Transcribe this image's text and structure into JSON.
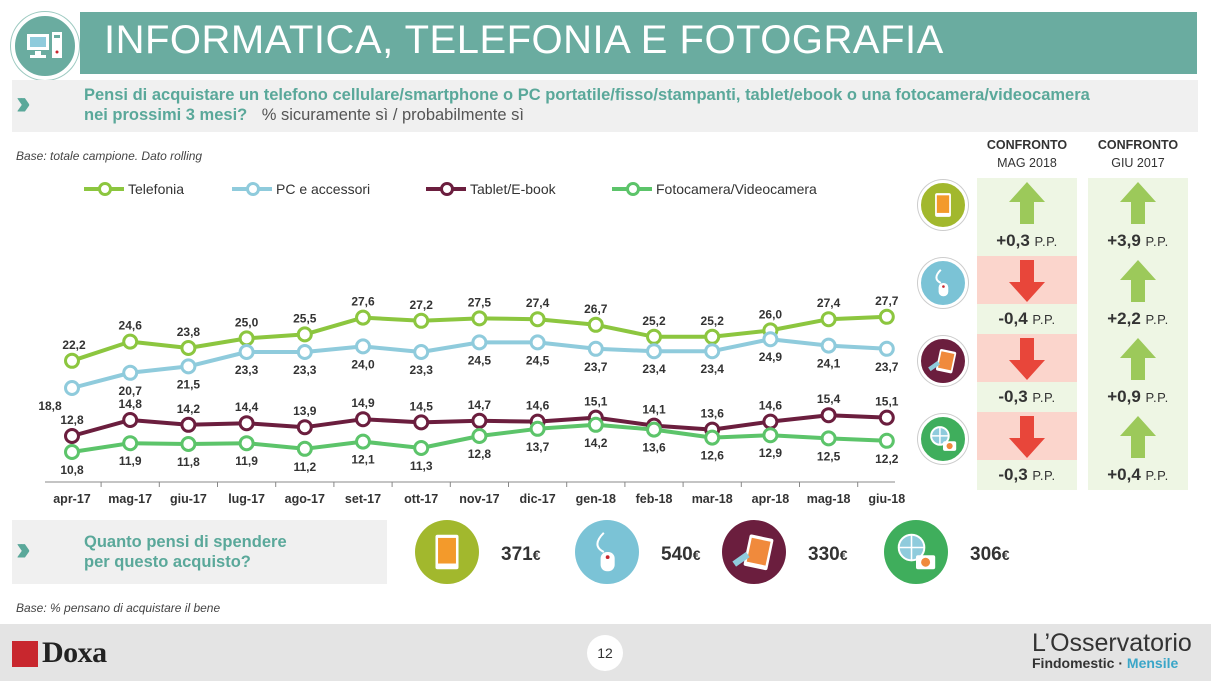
{
  "header": {
    "title": "INFORMATICA, TELEFONIA E FOTOGRAFIA",
    "question_line1": "Pensi di acquistare un telefono cellulare/smartphone o PC portatile/fisso/stampanti, tablet/ebook o una fotocamera/videocamera",
    "question_line2": "nei prossimi 3 mesi?",
    "question_suffix": "% sicuramente sì / probabilmente sì"
  },
  "base_note": "Base: totale campione. Dato rolling",
  "chart_data": {
    "type": "line",
    "categories": [
      "apr-17",
      "mag-17",
      "giu-17",
      "lug-17",
      "ago-17",
      "set-17",
      "ott-17",
      "nov-17",
      "dic-17",
      "gen-18",
      "feb-18",
      "mar-18",
      "apr-18",
      "mag-18",
      "giu-18"
    ],
    "series": [
      {
        "name": "Telefonia",
        "color": "#8cc63f",
        "values": [
          22.2,
          24.6,
          23.8,
          25.0,
          25.5,
          27.6,
          27.2,
          27.5,
          27.4,
          26.7,
          25.2,
          25.2,
          26.0,
          27.4,
          27.7
        ],
        "labels": [
          "22,2",
          "24,6",
          "23,8",
          "25,0",
          "25,5",
          "27,6",
          "27,2",
          "27,5",
          "27,4",
          "26,7",
          "25,2",
          "25,2",
          "26,0",
          "27,4",
          "27,7"
        ]
      },
      {
        "name": "PC e accessori",
        "color": "#8fcbdc",
        "values": [
          18.8,
          20.7,
          21.5,
          23.3,
          23.3,
          24.0,
          23.3,
          24.5,
          24.5,
          23.7,
          23.4,
          23.4,
          24.9,
          24.1,
          23.7
        ],
        "labels": [
          "18,8",
          "20,7",
          "21,5",
          "23,3",
          "23,3",
          "24,0",
          "23,3",
          "24,5",
          "24,5",
          "23,7",
          "23,4",
          "23,4",
          "24,9",
          "24,1",
          "23,7"
        ]
      },
      {
        "name": "Tablet/E-book",
        "color": "#6b1e3e",
        "values": [
          12.8,
          14.8,
          14.2,
          14.4,
          13.9,
          14.9,
          14.5,
          14.7,
          14.6,
          15.1,
          14.1,
          13.6,
          14.6,
          15.4,
          15.1
        ],
        "labels": [
          "12,8",
          "14,8",
          "14,2",
          "14,4",
          "13,9",
          "14,9",
          "14,5",
          "14,7",
          "14,6",
          "15,1",
          "14,1",
          "13,6",
          "14,6",
          "15,4",
          "15,1"
        ]
      },
      {
        "name": "Fotocamera/Videocamera",
        "color": "#5cc46a",
        "values": [
          10.8,
          11.9,
          11.8,
          11.9,
          11.2,
          12.1,
          11.3,
          12.8,
          13.7,
          14.2,
          13.6,
          12.6,
          12.9,
          12.5,
          12.2
        ],
        "labels": [
          "10,8",
          "11,9",
          "11,8",
          "11,9",
          "11,2",
          "12,1",
          "11,3",
          "12,8",
          "13,7",
          "14,2",
          "13,6",
          "12,6",
          "12,9",
          "12,5",
          "12,2"
        ]
      }
    ],
    "legend_placement": "top",
    "grid": false
  },
  "comparison": {
    "col1_title": "CONFRONTO",
    "col1_sub": "MAG 2018",
    "col2_title": "CONFRONTO",
    "col2_sub": "GIU 2017",
    "unit": "P.P.",
    "rows": [
      {
        "icon": "smartphone-icon",
        "icon_color": "#a2b82d",
        "col1": {
          "value": "+0,3",
          "direction": "up"
        },
        "col2": {
          "value": "+3,9",
          "direction": "up"
        }
      },
      {
        "icon": "mouse-icon",
        "icon_color": "#7bc3d6",
        "col1": {
          "value": "-0,4",
          "direction": "down"
        },
        "col2": {
          "value": "+2,2",
          "direction": "up"
        }
      },
      {
        "icon": "tablet-icon",
        "icon_color": "#6b1e3e",
        "col1": {
          "value": "-0,3",
          "direction": "down"
        },
        "col2": {
          "value": "+0,9",
          "direction": "up"
        }
      },
      {
        "icon": "camera-icon",
        "icon_color": "#3fae5c",
        "col1": {
          "value": "-0,3",
          "direction": "down"
        },
        "col2": {
          "value": "+0,4",
          "direction": "up"
        }
      }
    ]
  },
  "spend": {
    "question_line1": "Quanto pensi di spendere",
    "question_line2": "per questo acquisto?",
    "items": [
      {
        "icon": "smartphone-icon",
        "color": "#a2b82d",
        "amount": "371",
        "currency": "€"
      },
      {
        "icon": "mouse-icon",
        "color": "#7bc3d6",
        "amount": "540",
        "currency": "€"
      },
      {
        "icon": "tablet-icon",
        "color": "#6b1e3e",
        "amount": "330",
        "currency": "€"
      },
      {
        "icon": "camera-icon",
        "color": "#3fae5c",
        "amount": "306",
        "currency": "€"
      }
    ]
  },
  "base_note2": "Base: % pensano di acquistare il bene",
  "footer": {
    "page_number": "12",
    "brand_left": "Doxa",
    "brand_right_main": "L’Osservatorio",
    "brand_right_sub1": "Findomestic ·",
    "brand_right_sub2": "Mensile"
  }
}
